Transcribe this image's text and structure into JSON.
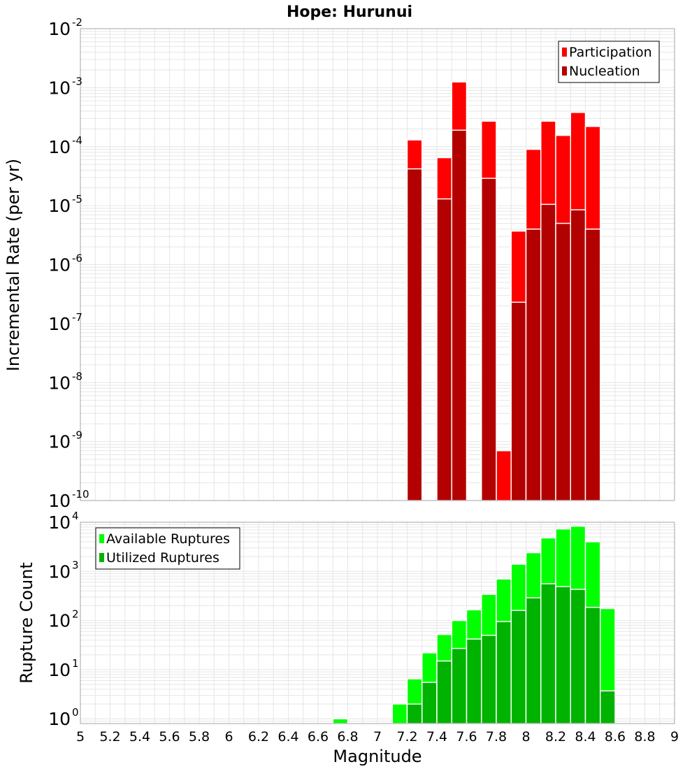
{
  "colors": {
    "participation": "#ff0000",
    "nucleation": "#b30000",
    "available": "#00ff00",
    "utilized": "#00b300",
    "grid": "#e6e6e6",
    "frame": "#a6a6a6"
  },
  "chart_data": [
    {
      "type": "bar",
      "title": "Hope: Hurunui",
      "xlabel": "",
      "ylabel": "Incremental Rate (per yr)",
      "yscale": "log",
      "xlim": [
        5,
        9
      ],
      "ylim": [
        1e-10,
        0.01
      ],
      "grid": true,
      "legend_position": "top-right",
      "y_ticks": [
        {
          "base": "10",
          "exp": "-10"
        },
        {
          "base": "10",
          "exp": "-9"
        },
        {
          "base": "10",
          "exp": "-8"
        },
        {
          "base": "10",
          "exp": "-7"
        },
        {
          "base": "10",
          "exp": "-6"
        },
        {
          "base": "10",
          "exp": "-5"
        },
        {
          "base": "10",
          "exp": "-4"
        },
        {
          "base": "10",
          "exp": "-3"
        },
        {
          "base": "10",
          "exp": "-2"
        }
      ],
      "x": [
        7.25,
        7.45,
        7.55,
        7.75,
        7.85,
        7.95,
        8.05,
        8.15,
        8.25,
        8.35,
        8.45
      ],
      "series": [
        {
          "name": "Participation",
          "values": [
            0.00013,
            6.5e-05,
            0.00125,
            0.00027,
            7e-10,
            3.7e-06,
            9e-05,
            0.00027,
            0.000155,
            0.00038,
            0.00022
          ]
        },
        {
          "name": "Nucleation",
          "values": [
            4.2e-05,
            1.3e-05,
            0.00019,
            2.9e-05,
            null,
            2.3e-07,
            4e-06,
            1.05e-05,
            5e-06,
            8.5e-06,
            4e-06
          ]
        }
      ]
    },
    {
      "type": "bar",
      "xlabel": "Magnitude",
      "ylabel": "Rupture Count",
      "yscale": "log",
      "xlim": [
        5,
        9
      ],
      "ylim": [
        0.8,
        10000
      ],
      "grid": true,
      "legend_position": "top-left",
      "x_ticks": [
        "5",
        "5.2",
        "5.4",
        "5.6",
        "5.8",
        "6",
        "6.2",
        "6.4",
        "6.6",
        "6.8",
        "7",
        "7.2",
        "7.4",
        "7.6",
        "7.8",
        "8",
        "8.2",
        "8.4",
        "8.6",
        "8.8",
        "9"
      ],
      "y_ticks": [
        {
          "base": "10",
          "exp": "0"
        },
        {
          "base": "10",
          "exp": "1"
        },
        {
          "base": "10",
          "exp": "2"
        },
        {
          "base": "10",
          "exp": "3"
        },
        {
          "base": "10",
          "exp": "4"
        }
      ],
      "x": [
        6.75,
        7.15,
        7.25,
        7.35,
        7.45,
        7.55,
        7.65,
        7.75,
        7.85,
        7.95,
        8.05,
        8.15,
        8.25,
        8.35,
        8.45,
        8.55
      ],
      "series": [
        {
          "name": "Available Ruptures",
          "values": [
            1,
            2,
            6.5,
            22,
            52,
            100,
            165,
            340,
            700,
            1400,
            2400,
            4800,
            7300,
            8300,
            4000,
            175
          ]
        },
        {
          "name": "Utilized Ruptures",
          "values": [
            null,
            null,
            2,
            5.5,
            15,
            27,
            42,
            50,
            95,
            160,
            290,
            560,
            490,
            430,
            185,
            3.7
          ]
        }
      ]
    }
  ]
}
